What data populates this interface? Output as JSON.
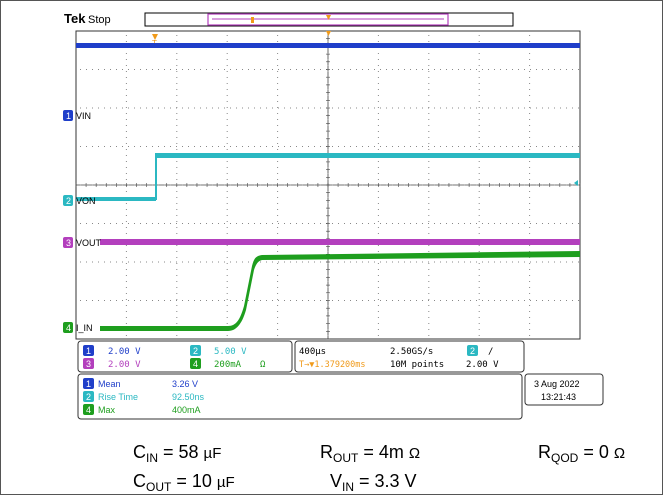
{
  "header": {
    "brand": "Tek",
    "state": "Stop",
    "trigger_marker": "T"
  },
  "channels": {
    "ch1": {
      "num": "1",
      "label": "VIN",
      "color": "#1f3ec9"
    },
    "ch2": {
      "num": "2",
      "label": "VON",
      "color": "#2bb8c2"
    },
    "ch3": {
      "num": "3",
      "label": "VOUT",
      "color": "#b33fbd"
    },
    "ch4": {
      "num": "4",
      "label": "I_IN",
      "color": "#1e9e1e"
    }
  },
  "scales": {
    "ch1": "2.00 V",
    "ch2": "5.00 V",
    "ch3": "2.00 V",
    "ch4": "200mA",
    "ch4_unit": "Ω"
  },
  "timebase": {
    "horizontal": "400µs",
    "sample_rate": "2.50GS/s",
    "trigger_channel": "2",
    "trigger_slope": "/",
    "trigger_position": "T→▼1.379200ms",
    "record_length": "10M points",
    "trigger_level": "2.00 V"
  },
  "measurements": [
    {
      "channel": "1",
      "name": "Mean",
      "value": "3.26 V"
    },
    {
      "channel": "2",
      "name": "Rise Time",
      "value": "92.50ns"
    },
    {
      "channel": "4",
      "name": "Max",
      "value": "400mA"
    }
  ],
  "datetime": {
    "date": "3 Aug 2022",
    "time": "13:21:43"
  },
  "captions": {
    "cin_main": "C",
    "cin_sub": "IN",
    "cin_val": " = 58 ",
    "cin_unit": "µF",
    "rout_main": "R",
    "rout_sub": "OUT",
    "rout_val": " = 4m ",
    "rout_unit": "Ω",
    "rqod_main": "R",
    "rqod_sub": "QOD",
    "rqod_val": " = 0 ",
    "rqod_unit": "Ω",
    "cout_main": "C",
    "cout_sub": "OUT",
    "cout_val": " = 10 ",
    "cout_unit": "µF",
    "vin_main": "V",
    "vin_sub": "IN",
    "vin_val": " = 3.3 V"
  }
}
